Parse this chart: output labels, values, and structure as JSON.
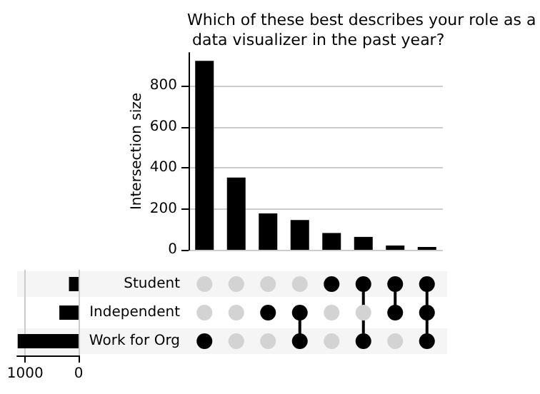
{
  "chart_data": [
    {
      "type": "bar",
      "title": "Which of these best describes your role as a data visualizer in the past year?",
      "ylabel": "Intersection size",
      "categories": [
        null,
        null,
        null,
        null,
        null,
        null,
        null,
        null
      ],
      "values": [
        921,
        352,
        177,
        145,
        82,
        63,
        21,
        14
      ],
      "color": "#000000",
      "ylim": [
        0,
        960
      ],
      "yticks": [
        0,
        200,
        400,
        600,
        800
      ],
      "grid": "y"
    },
    {
      "type": "bar",
      "orientation": "horizontal",
      "categories": [
        "Student",
        "Independent",
        "Work for Org"
      ],
      "values": [
        180,
        360,
        1140
      ],
      "color": "#000000",
      "xlim": [
        1150,
        0
      ],
      "xticks": [
        1000,
        0
      ],
      "grid": "x"
    }
  ]
}
